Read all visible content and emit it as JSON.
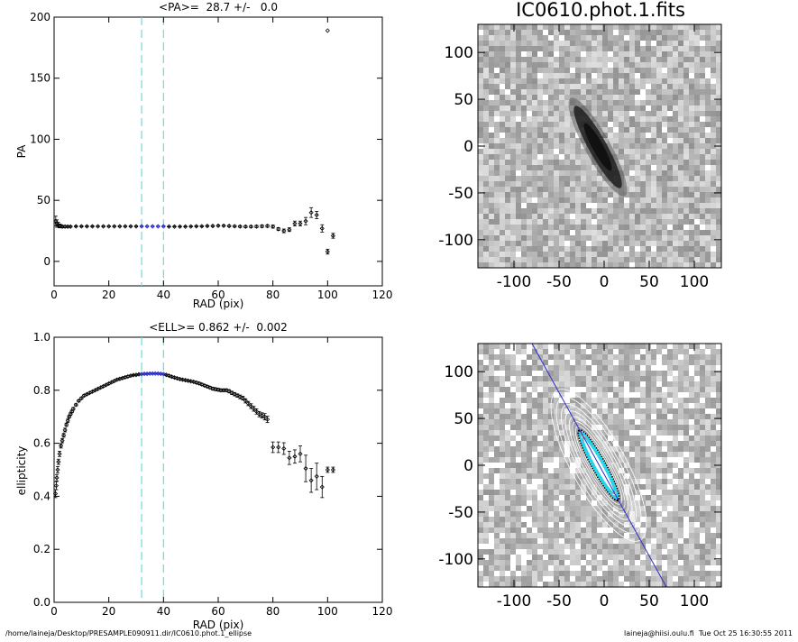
{
  "footer": {
    "left": "/home/laineja/Desktop/PRESAMPLE090911.dir/IC0610.phot.1_ellipse",
    "right": "laineja@hiisi.oulu.fi  Tue Oct 25 16:30:55 2011"
  },
  "images": {
    "title": "IC0610.phot.1.fits",
    "x_ticks": [
      "-100",
      "-50",
      "0",
      "50",
      "100"
    ],
    "y_ticks": [
      "100",
      "50",
      "0",
      "-50",
      "-100"
    ],
    "xlim": [
      -140,
      130
    ],
    "ylim": [
      -130,
      130
    ]
  },
  "chart_data": [
    {
      "type": "scatter",
      "title": "<PA>=  28.7 +/-   0.0",
      "xlabel": "RAD (pix)",
      "ylabel": "PA",
      "xlim": [
        0,
        120
      ],
      "ylim": [
        -20,
        200
      ],
      "x_ticks": [
        0,
        20,
        40,
        60,
        80,
        100,
        120
      ],
      "y_ticks": [
        0,
        50,
        100,
        150,
        200
      ],
      "vlines": [
        32,
        40
      ],
      "series": [
        {
          "x": [
            0.6,
            1.0,
            1.5,
            2.0,
            2.5,
            3.0,
            4.0,
            5.0,
            6.0,
            8.0,
            10.0,
            12.0,
            14.0,
            16.0,
            18.0,
            20.0,
            22.0,
            24.0,
            26.0,
            28.0,
            30.0,
            32.0,
            34.0,
            36.0,
            38.0,
            40.0,
            42.0,
            44.0,
            46.0,
            48.0,
            50.0,
            52.0,
            54.0,
            56.0,
            58.0,
            60.0,
            62.0,
            64.0,
            66.0,
            68.0,
            70.0,
            72.0,
            74.0,
            76.0,
            78.0,
            80.0,
            82.0,
            84.0,
            86.0,
            88.0,
            90.0,
            92.0,
            94.0,
            96.0,
            98.0,
            100.0,
            102.0
          ],
          "y": [
            33,
            31,
            30,
            29,
            29,
            28.5,
            28.5,
            28.5,
            28.5,
            28.7,
            28.7,
            28.7,
            28.7,
            28.7,
            28.7,
            28.7,
            28.7,
            28.7,
            28.7,
            28.7,
            28.7,
            28.7,
            28.7,
            28.7,
            28.7,
            28.7,
            28.5,
            28.5,
            28.5,
            28.5,
            28.6,
            28.8,
            28.8,
            29.0,
            29.0,
            29.2,
            29.2,
            29.0,
            28.8,
            28.6,
            28.5,
            28.5,
            28.6,
            28.8,
            29.0,
            28.5,
            26.5,
            25.0,
            26.0,
            31.0,
            31.0,
            33.0,
            40.0,
            38.0,
            27.0,
            8.0,
            21.0
          ],
          "err": [
            4,
            3,
            2,
            1.5,
            1,
            1,
            0.8,
            0.6,
            0.5,
            0.4,
            0.3,
            0.3,
            0.3,
            0.2,
            0.2,
            0.2,
            0.2,
            0.2,
            0.2,
            0.2,
            0.2,
            0.2,
            0.2,
            0.2,
            0.2,
            0.2,
            0.2,
            0.3,
            0.3,
            0.3,
            0.3,
            0.4,
            0.4,
            0.4,
            0.5,
            0.5,
            0.5,
            0.6,
            0.6,
            0.7,
            0.8,
            0.8,
            0.9,
            1.0,
            1.0,
            1.2,
            1.2,
            1.5,
            1.5,
            2.0,
            2.0,
            3.0,
            4.0,
            3.0,
            3.0,
            2.0,
            2.0
          ]
        },
        {
          "x": [
            100
          ],
          "y": [
            189
          ],
          "err": [
            0
          ]
        }
      ]
    },
    {
      "type": "scatter",
      "title": "<ELL>= 0.862 +/-  0.002",
      "xlabel": "RAD (pix)",
      "ylabel": "ellipticity",
      "xlim": [
        0,
        120
      ],
      "ylim": [
        0.0,
        1.0
      ],
      "x_ticks": [
        0,
        20,
        40,
        60,
        80,
        100,
        120
      ],
      "y_ticks": [
        0.0,
        0.2,
        0.4,
        0.6,
        0.8,
        1.0
      ],
      "vlines": [
        32,
        40
      ],
      "series": [
        {
          "x": [
            0.5,
            0.8,
            1.0,
            1.3,
            1.6,
            2.0,
            2.5,
            3.0,
            3.5,
            4.0,
            4.5,
            5.0,
            5.5,
            6.0,
            6.5,
            7.0,
            8.0,
            9.0,
            10.0,
            11.0,
            12.0,
            13.0,
            14.0,
            15.0,
            16.0,
            17.0,
            18.0,
            19.0,
            20.0,
            21.0,
            22.0,
            23.0,
            24.0,
            25.0,
            26.0,
            27.0,
            28.0,
            29.0,
            30.0,
            31.0,
            32.0,
            33.0,
            34.0,
            35.0,
            36.0,
            37.0,
            38.0,
            39.0,
            40.0,
            41.0,
            42.0,
            43.0,
            44.0,
            45.0,
            46.0,
            47.0,
            48.0,
            49.0,
            50.0,
            51.0,
            52.0,
            53.0,
            54.0,
            55.0,
            56.0,
            57.0,
            58.0,
            59.0,
            60.0,
            61.0,
            62.0,
            63.0,
            64.0,
            65.0,
            66.0,
            67.0,
            68.0,
            69.0,
            70.0,
            71.0,
            72.0,
            73.0,
            74.0,
            75.0,
            76.0,
            77.0,
            78.0,
            80.0,
            82.0,
            84.0,
            86.0,
            88.0,
            90.0,
            92.0,
            94.0,
            96.0,
            98.0,
            100.0,
            102.0
          ],
          "y": [
            0.41,
            0.44,
            0.47,
            0.5,
            0.53,
            0.56,
            0.59,
            0.61,
            0.63,
            0.65,
            0.67,
            0.685,
            0.7,
            0.71,
            0.72,
            0.73,
            0.745,
            0.76,
            0.77,
            0.78,
            0.785,
            0.79,
            0.795,
            0.8,
            0.805,
            0.81,
            0.815,
            0.82,
            0.825,
            0.83,
            0.835,
            0.84,
            0.843,
            0.846,
            0.849,
            0.852,
            0.855,
            0.857,
            0.858,
            0.86,
            0.861,
            0.862,
            0.862,
            0.863,
            0.863,
            0.863,
            0.863,
            0.862,
            0.861,
            0.858,
            0.855,
            0.851,
            0.848,
            0.845,
            0.842,
            0.84,
            0.838,
            0.836,
            0.834,
            0.832,
            0.829,
            0.826,
            0.822,
            0.818,
            0.814,
            0.81,
            0.806,
            0.804,
            0.802,
            0.8,
            0.8,
            0.8,
            0.796,
            0.79,
            0.785,
            0.78,
            0.775,
            0.77,
            0.76,
            0.75,
            0.74,
            0.73,
            0.72,
            0.71,
            0.705,
            0.7,
            0.69,
            0.585,
            0.585,
            0.58,
            0.545,
            0.55,
            0.56,
            0.505,
            0.46,
            0.475,
            0.435,
            0.5,
            0.5
          ],
          "err": [
            0.015,
            0.015,
            0.012,
            0.012,
            0.01,
            0.01,
            0.008,
            0.008,
            0.007,
            0.007,
            0.006,
            0.006,
            0.005,
            0.005,
            0.005,
            0.005,
            0.004,
            0.004,
            0.004,
            0.004,
            0.003,
            0.003,
            0.003,
            0.003,
            0.003,
            0.003,
            0.003,
            0.003,
            0.003,
            0.003,
            0.003,
            0.003,
            0.003,
            0.003,
            0.003,
            0.003,
            0.002,
            0.002,
            0.002,
            0.002,
            0.002,
            0.002,
            0.002,
            0.002,
            0.002,
            0.002,
            0.002,
            0.002,
            0.002,
            0.002,
            0.003,
            0.003,
            0.003,
            0.003,
            0.003,
            0.003,
            0.003,
            0.003,
            0.003,
            0.003,
            0.004,
            0.004,
            0.004,
            0.004,
            0.004,
            0.004,
            0.005,
            0.005,
            0.005,
            0.005,
            0.005,
            0.005,
            0.006,
            0.006,
            0.006,
            0.006,
            0.007,
            0.007,
            0.008,
            0.008,
            0.009,
            0.009,
            0.01,
            0.01,
            0.01,
            0.012,
            0.012,
            0.02,
            0.02,
            0.022,
            0.025,
            0.025,
            0.03,
            0.05,
            0.045,
            0.05,
            0.04,
            0.01,
            0.01
          ]
        }
      ]
    }
  ]
}
